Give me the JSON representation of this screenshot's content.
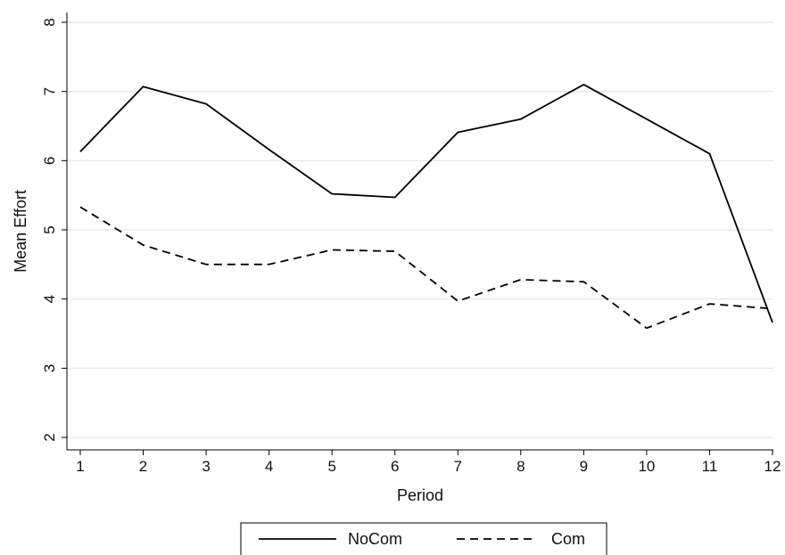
{
  "chart_data": {
    "type": "line",
    "title": "",
    "xlabel": "Period",
    "ylabel": "Mean Effort",
    "x": [
      1,
      2,
      3,
      4,
      5,
      6,
      7,
      8,
      9,
      10,
      11,
      12
    ],
    "xticks": [
      "1",
      "2",
      "3",
      "4",
      "5",
      "6",
      "7",
      "8",
      "9",
      "10",
      "11",
      "12"
    ],
    "yticks": [
      "2",
      "3",
      "4",
      "5",
      "6",
      "7",
      "8"
    ],
    "xlim": [
      1,
      12
    ],
    "ylim": [
      2,
      8
    ],
    "grid": "horizontal",
    "legend_position": "bottom",
    "series": [
      {
        "name": "NoCom",
        "style": "solid",
        "color": "#000000",
        "values": [
          6.13,
          7.07,
          6.82,
          6.16,
          5.52,
          5.47,
          6.41,
          6.6,
          7.1,
          6.6,
          6.1,
          3.66
        ]
      },
      {
        "name": "Com",
        "style": "dashed",
        "color": "#000000",
        "values": [
          5.33,
          4.78,
          4.5,
          4.5,
          4.71,
          4.69,
          3.97,
          4.28,
          4.25,
          3.58,
          3.93,
          3.86
        ]
      }
    ]
  }
}
